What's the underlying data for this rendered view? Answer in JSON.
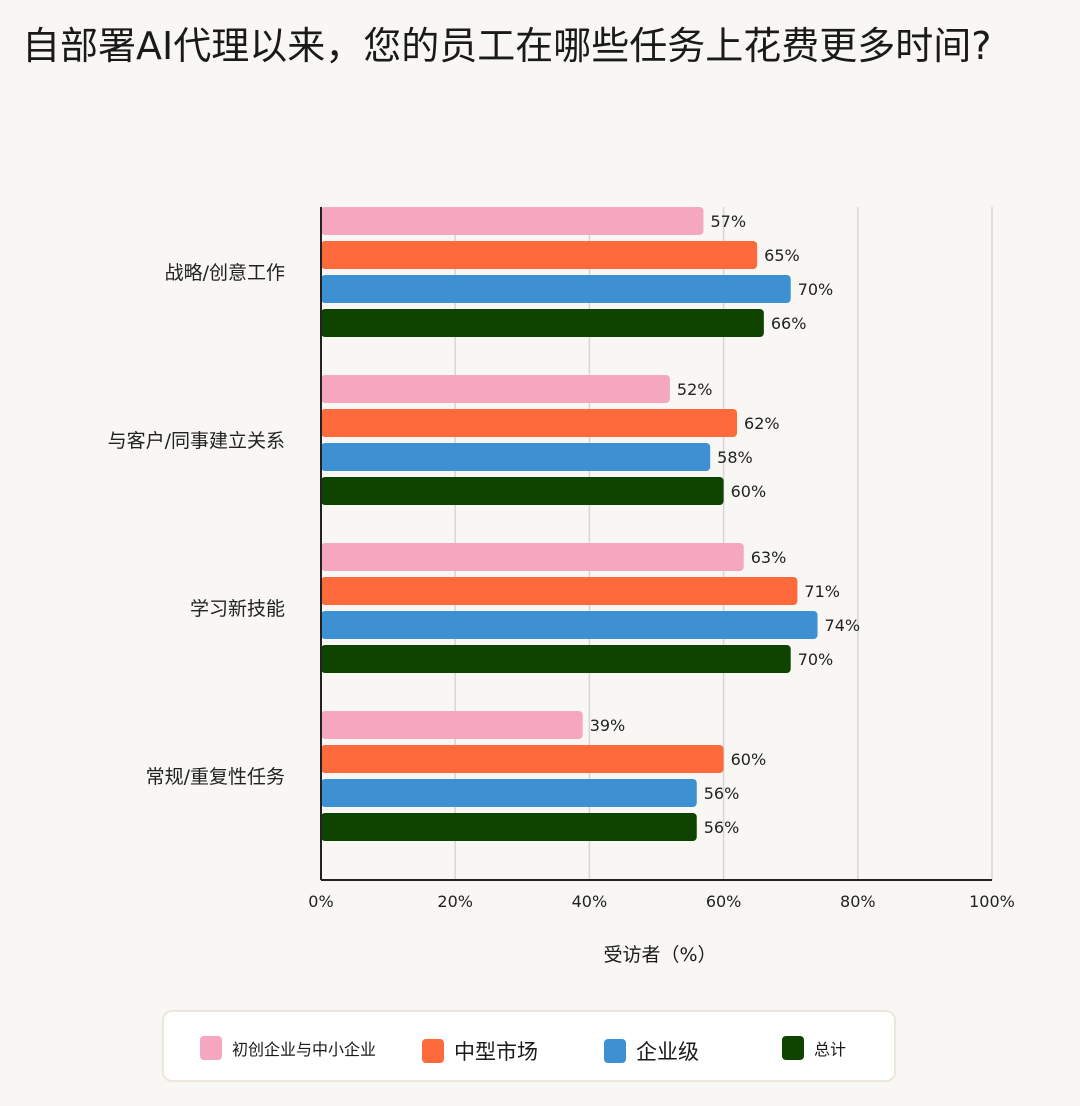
{
  "title": "自部署AI代理以来，您的员工在哪些任务上花费更多时间?",
  "chart_data": {
    "type": "bar",
    "orientation": "horizontal",
    "categories": [
      "战略/创意工作",
      "与客户/同事建立关系",
      "学习新技能",
      "常规/重复性任务"
    ],
    "series": [
      {
        "name": "初创企业与中小企业",
        "color": "#f5a7c0",
        "values": [
          57,
          52,
          63,
          39
        ]
      },
      {
        "name": "中型市场",
        "color": "#ff6a3d",
        "values": [
          65,
          62,
          71,
          60
        ]
      },
      {
        "name": "企业级",
        "color": "#3d91d3",
        "values": [
          70,
          58,
          74,
          56
        ]
      },
      {
        "name": "总计",
        "color": "#0f4400",
        "values": [
          66,
          60,
          70,
          56
        ]
      }
    ],
    "xlabel": "受访者（%）",
    "xlim": [
      0,
      100
    ],
    "xticks": [
      "0%",
      "20%",
      "40%",
      "60%",
      "80%",
      "100%"
    ],
    "grid": true,
    "legend": "bottom",
    "data_label_suffix": "%"
  }
}
